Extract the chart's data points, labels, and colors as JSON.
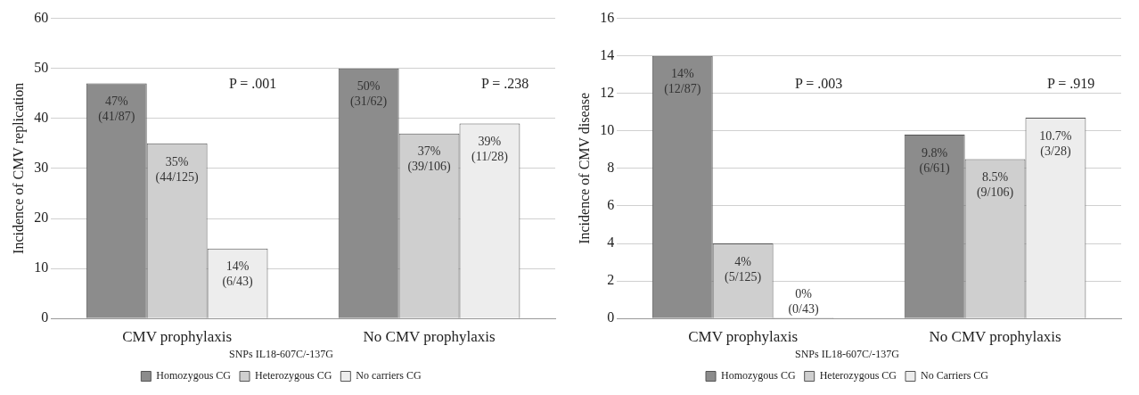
{
  "chart_data": [
    {
      "type": "bar",
      "ylabel": "Incidence of CMV replication",
      "categories": [
        "CMV prophylaxis",
        "No CMV prophylaxis"
      ],
      "legend_title": "SNPs IL18-607C/-137G",
      "legend": "bottom",
      "grid": "y",
      "ylim": [
        0,
        60
      ],
      "yticks": [
        0,
        10,
        20,
        30,
        40,
        50,
        60
      ],
      "series": [
        {
          "name": "Homozygous CG",
          "color": "#8c8c8c",
          "values": [
            47,
            50
          ],
          "value_labels": [
            "47%\n(41/87)",
            "50%\n(31/62)"
          ]
        },
        {
          "name": "Heterozygous CG",
          "color": "#cfcfcf",
          "values": [
            35,
            37
          ],
          "value_labels": [
            "35%\n(44/125)",
            "37%\n(39/106)"
          ]
        },
        {
          "name": "No carriers CG",
          "color": "#ededed",
          "values": [
            14,
            39
          ],
          "value_labels": [
            "14%\n(6/43)",
            "39%\n(11/28)"
          ]
        }
      ],
      "annotations": [
        "P = .001",
        "P = .238"
      ]
    },
    {
      "type": "bar",
      "ylabel": "Incidence of CMV disease",
      "categories": [
        "CMV prophylaxis",
        "No CMV prophylaxis"
      ],
      "legend_title": "SNPs IL18-607C/-137G",
      "legend": "bottom",
      "grid": "y",
      "ylim": [
        0,
        16
      ],
      "yticks": [
        0,
        2,
        4,
        6,
        8,
        10,
        12,
        14,
        16
      ],
      "series": [
        {
          "name": "Homozygous CG",
          "color": "#8c8c8c",
          "values": [
            14,
            9.8
          ],
          "value_labels": [
            "14%\n(12/87)",
            "9.8%\n(6/61)"
          ]
        },
        {
          "name": "Heterozygous CG",
          "color": "#cfcfcf",
          "values": [
            4,
            8.5
          ],
          "value_labels": [
            "4%\n(5/125)",
            "8.5%\n(9/106)"
          ]
        },
        {
          "name": "No Carriers CG",
          "color": "#ededed",
          "values": [
            0,
            10.7
          ],
          "value_labels": [
            "0%\n(0/43)",
            "10.7%\n(3/28)"
          ]
        }
      ],
      "annotations": [
        "P = .003",
        "P = .919"
      ]
    }
  ]
}
